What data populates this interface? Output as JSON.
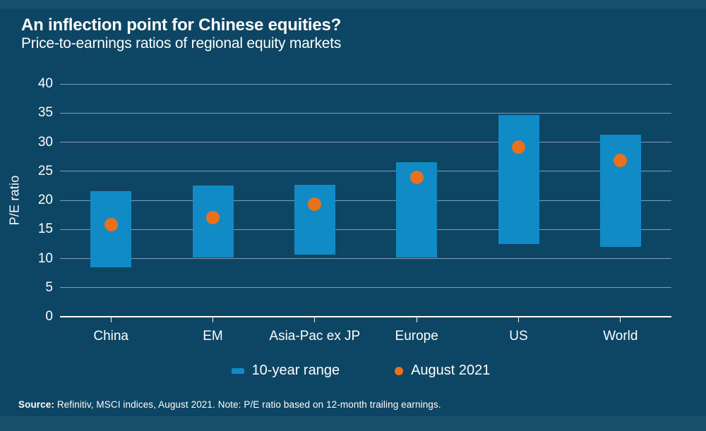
{
  "header": {
    "title": "An inflection point for Chinese equities?",
    "subtitle": "Price-to-earnings ratios of regional equity markets"
  },
  "colors": {
    "background": "#0C4664",
    "bar_blue": "#118BC5",
    "dot_orange": "#E8711E",
    "gridline": "#9FB4C2",
    "axis_line": "#FFFFFF",
    "text": "#FFFFFF"
  },
  "chart_data": {
    "type": "bar",
    "subtype": "floating-range-with-points",
    "categories": [
      "China",
      "EM",
      "Asia-Pac ex JP",
      "Europe",
      "US",
      "World"
    ],
    "series": [
      {
        "name": "10-year range",
        "type": "range",
        "low": [
          8.5,
          10.2,
          10.7,
          10.2,
          12.5,
          12.0
        ],
        "high": [
          21.6,
          22.6,
          22.7,
          26.5,
          34.7,
          31.3
        ]
      },
      {
        "name": "August 2021",
        "type": "point",
        "values": [
          15.8,
          17.0,
          19.3,
          23.9,
          29.1,
          26.8
        ]
      }
    ],
    "title": "An inflection point for Chinese equities?",
    "subtitle": "Price-to-earnings ratios of regional equity markets",
    "xlabel": "",
    "ylabel": "P/E ratio",
    "ylim": [
      0,
      40
    ],
    "yticks": [
      0,
      5,
      10,
      15,
      20,
      25,
      30,
      35,
      40
    ],
    "ytick_step": 5,
    "grid": true,
    "legend_position": "bottom"
  },
  "legend": {
    "items": [
      {
        "label": "10-year range",
        "swatch": "rect",
        "color": "#118BC5"
      },
      {
        "label": "August 2021",
        "swatch": "circle",
        "color": "#E8711E"
      }
    ]
  },
  "footer": {
    "source_label": "Source:",
    "source_text": " Refinitiv, MSCI indices, August 2021. Note: P/E ratio based on 12-month trailing earnings."
  }
}
